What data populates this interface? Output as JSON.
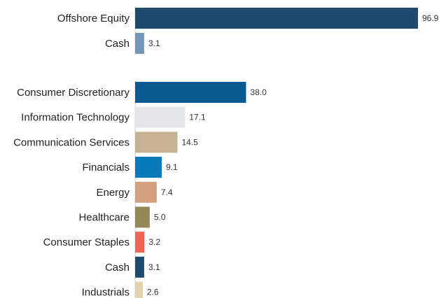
{
  "chart_data": [
    {
      "type": "bar",
      "orientation": "horizontal",
      "categories": [
        "Offshore Equity",
        "Cash"
      ],
      "values": [
        96.9,
        3.1
      ],
      "colors": [
        "#1f4a70",
        "#7596b8"
      ],
      "value_labels": [
        "96.9",
        "3.1"
      ],
      "xlim": [
        0,
        100
      ],
      "grid": false
    },
    {
      "type": "bar",
      "orientation": "horizontal",
      "categories": [
        "Consumer Discretionary",
        "Information Technology",
        "Communication Services",
        "Financials",
        "Energy",
        "Healthcare",
        "Consumer Staples",
        "Cash",
        "Industrials"
      ],
      "values": [
        38.0,
        17.1,
        14.5,
        9.1,
        7.4,
        5.0,
        3.2,
        3.1,
        2.6
      ],
      "colors": [
        "#0a5a92",
        "#e3e6e9",
        "#c6b293",
        "#0879b9",
        "#d4a17f",
        "#968856",
        "#ef6552",
        "#1d4b72",
        "#e2d3a8"
      ],
      "value_labels": [
        "38.0",
        "17.1",
        "14.5",
        "9.1",
        "7.4",
        "5.0",
        "3.2",
        "3.1",
        "2.6"
      ],
      "xlim": [
        0,
        100
      ],
      "grid": false
    }
  ]
}
